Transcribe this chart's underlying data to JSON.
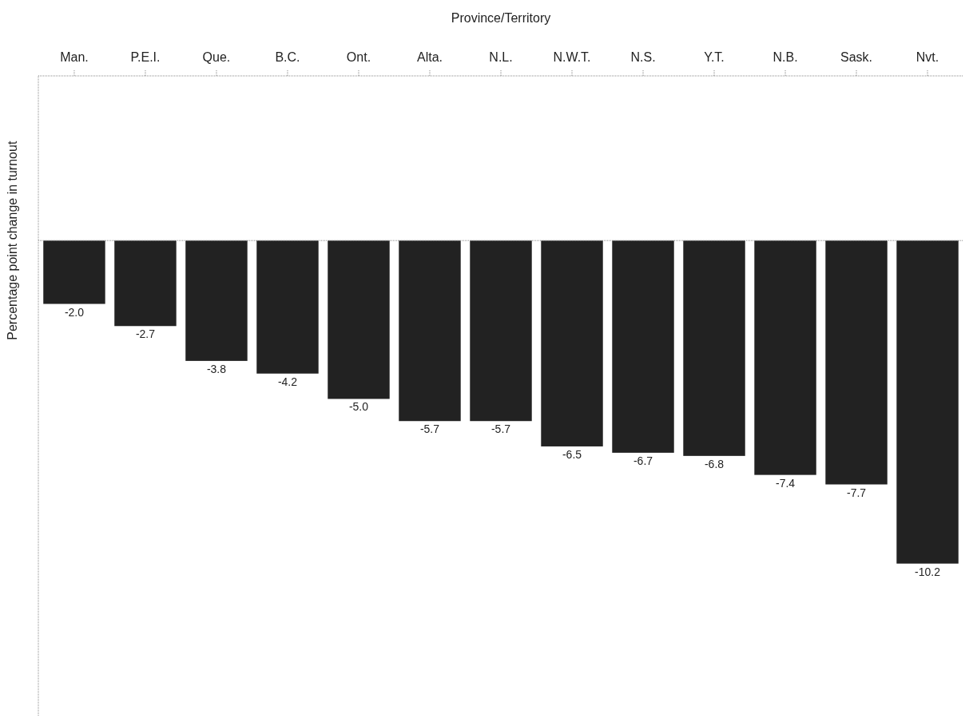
{
  "chart_data": {
    "type": "bar",
    "xlabel": "Province/Territory",
    "ylabel": "Percentage point change in turnout",
    "categories": [
      "Man.",
      "P.E.I.",
      "Que.",
      "B.C.",
      "Ont.",
      "Alta.",
      "N.L.",
      "N.W.T.",
      "N.S.",
      "Y.T.",
      "N.B.",
      "Sask.",
      "Nvt."
    ],
    "values": [
      -2.0,
      -2.7,
      -3.8,
      -4.2,
      -5.0,
      -5.7,
      -5.7,
      -6.5,
      -6.7,
      -6.8,
      -7.4,
      -7.7,
      -10.2
    ],
    "value_labels": [
      "-2.0",
      "-2.7",
      "-3.8",
      "-4.2",
      "-5.0",
      "-5.7",
      "-5.7",
      "-6.5",
      "-6.7",
      "-6.8",
      "-7.4",
      "-7.7",
      "-10.2"
    ],
    "color": "#222222",
    "ylim": [
      -15,
      5.2
    ],
    "tick_labels": "x",
    "ref_lines": [
      {
        "axis": "y",
        "value": 0,
        "color": "#888888",
        "line_style": "dotted"
      }
    ]
  }
}
